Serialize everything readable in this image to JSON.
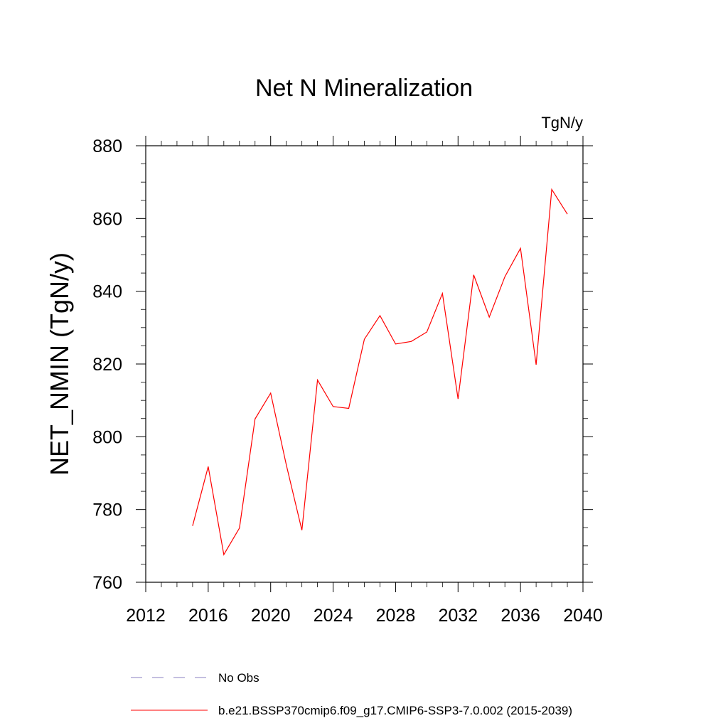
{
  "chart_data": {
    "type": "line",
    "title": "Net N Mineralization",
    "units_label": "TgN/y",
    "ylabel": "NET_NMIN  (TgN/y)",
    "xlabel": "",
    "xlim": [
      2012,
      2040
    ],
    "ylim": [
      760,
      880
    ],
    "xticks": [
      2012,
      2016,
      2020,
      2024,
      2028,
      2032,
      2036,
      2040
    ],
    "yticks": [
      760,
      780,
      800,
      820,
      840,
      860,
      880
    ],
    "x_tick_labels": [
      "2012",
      "2016",
      "2020",
      "2024",
      "2028",
      "2032",
      "2036",
      "2040"
    ],
    "y_tick_labels": [
      "760",
      "780",
      "800",
      "820",
      "840",
      "860",
      "880"
    ],
    "grid": false,
    "legend_placement": "bottom",
    "series": [
      {
        "name": "No Obs",
        "color": "#8a7fc0",
        "style": "dashed",
        "x": [],
        "values": []
      },
      {
        "name": "b.e21.BSSP370cmip6.f09_g17.CMIP6-SSP3-7.0.002 (2015-2039)",
        "color": "#ff0000",
        "style": "solid",
        "x": [
          2015,
          2016,
          2017,
          2018,
          2019,
          2020,
          2021,
          2022,
          2023,
          2024,
          2025,
          2026,
          2027,
          2028,
          2029,
          2030,
          2031,
          2032,
          2033,
          2034,
          2035,
          2036,
          2037,
          2038,
          2039
        ],
        "values": [
          775.5,
          791.8,
          767.6,
          774.9,
          804.9,
          812.0,
          792.3,
          774.3,
          815.6,
          808.3,
          807.8,
          826.8,
          833.3,
          825.5,
          826.2,
          828.8,
          839.4,
          810.4,
          844.5,
          832.9,
          844.0,
          851.8,
          819.8,
          868.0,
          861.2
        ]
      }
    ]
  }
}
